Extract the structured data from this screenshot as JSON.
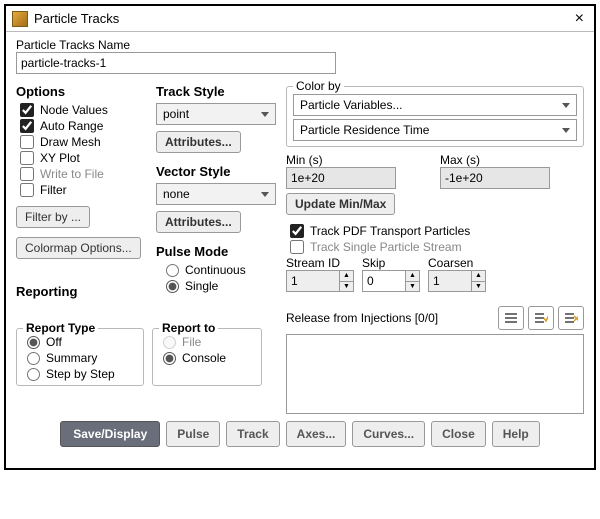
{
  "window": {
    "title": "Particle Tracks"
  },
  "name_section": {
    "label": "Particle Tracks Name",
    "value": "particle-tracks-1"
  },
  "options": {
    "header": "Options",
    "items": [
      {
        "label": "Node Values",
        "checked": true
      },
      {
        "label": "Auto Range",
        "checked": true
      },
      {
        "label": "Draw Mesh",
        "checked": false
      },
      {
        "label": "XY Plot",
        "checked": false
      },
      {
        "label": "Write to File",
        "checked": false
      },
      {
        "label": "Filter",
        "checked": false
      }
    ],
    "filter_by_btn": "Filter by ...",
    "colormap_btn": "Colormap Options..."
  },
  "track_style": {
    "header": "Track Style",
    "value": "point",
    "attributes_btn": "Attributes..."
  },
  "vector_style": {
    "header": "Vector Style",
    "value": "none",
    "attributes_btn": "Attributes..."
  },
  "pulse_mode": {
    "header": "Pulse Mode",
    "options": [
      "Continuous",
      "Single"
    ],
    "selected": "Single"
  },
  "reporting": {
    "header": "Reporting",
    "type_label": "Report Type",
    "type_options": [
      "Off",
      "Summary",
      "Step by Step"
    ],
    "type_selected": "Off",
    "to_label": "Report to",
    "to_options": [
      "File",
      "Console"
    ],
    "to_selected": "Console"
  },
  "color_by": {
    "label": "Color by",
    "sel1": "Particle Variables...",
    "sel2": "Particle Residence Time"
  },
  "range": {
    "min_label": "Min (s)",
    "min_value": "1e+20",
    "max_label": "Max (s)",
    "max_value": "-1e+20",
    "update_btn": "Update Min/Max"
  },
  "track_opts": {
    "pdf": {
      "label": "Track PDF Transport Particles",
      "checked": true
    },
    "single": {
      "label": "Track Single Particle Stream",
      "checked": false
    }
  },
  "stream": {
    "id_label": "Stream ID",
    "id_value": "1",
    "skip_label": "Skip",
    "skip_value": "0",
    "coarsen_label": "Coarsen",
    "coarsen_value": "1"
  },
  "release": {
    "label": "Release from Injections [0/0]"
  },
  "footer": {
    "save": "Save/Display",
    "pulse": "Pulse",
    "track": "Track",
    "axes": "Axes...",
    "curves": "Curves...",
    "close": "Close",
    "help": "Help"
  },
  "colors": {
    "accent": "#6a6e7a",
    "checkmark": "#e6a93a"
  }
}
